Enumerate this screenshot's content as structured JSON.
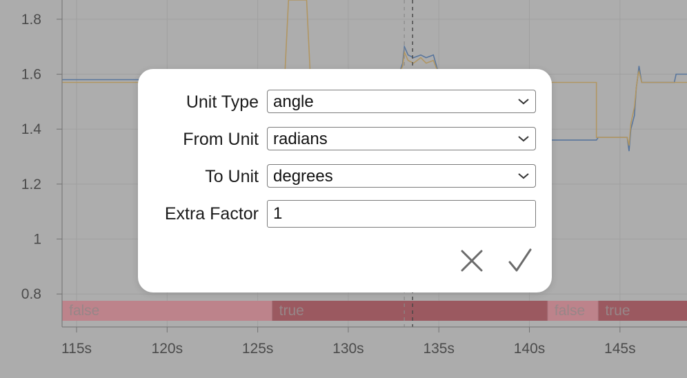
{
  "chart_data": {
    "type": "line",
    "xlabel": "",
    "ylabel": "",
    "xlim": [
      114.2,
      148.7
    ],
    "ylim": [
      0.68,
      1.87
    ],
    "y_ticks": [
      {
        "value": 0.8,
        "label": "0.8"
      },
      {
        "value": 1.0,
        "label": "1"
      },
      {
        "value": 1.2,
        "label": "1.2"
      },
      {
        "value": 1.4,
        "label": "1.4"
      },
      {
        "value": 1.6,
        "label": "1.6"
      },
      {
        "value": 1.8,
        "label": "1.8"
      }
    ],
    "x_ticks": [
      {
        "value": 115,
        "label": "115s"
      },
      {
        "value": 120,
        "label": "120s"
      },
      {
        "value": 125,
        "label": "125s"
      },
      {
        "value": 130,
        "label": "130s"
      },
      {
        "value": 135,
        "label": "135s"
      },
      {
        "value": 140,
        "label": "140s"
      },
      {
        "value": 145,
        "label": "145s"
      }
    ],
    "grid": true,
    "cursor_x": 133.55,
    "series": [
      {
        "color": "#6c8fbf",
        "points": [
          [
            114.2,
            1.58
          ],
          [
            124.6,
            1.58
          ],
          [
            124.6,
            1.6
          ],
          [
            126.6,
            1.6
          ],
          [
            126.7,
            1.6
          ],
          [
            132.8,
            1.6
          ],
          [
            133.0,
            1.64
          ],
          [
            133.1,
            1.7
          ],
          [
            133.3,
            1.67
          ],
          [
            133.6,
            1.66
          ],
          [
            134.0,
            1.67
          ],
          [
            134.3,
            1.66
          ],
          [
            134.7,
            1.67
          ],
          [
            135.0,
            1.6
          ],
          [
            136.3,
            1.6
          ],
          [
            136.4,
            1.5
          ],
          [
            136.8,
            1.4
          ],
          [
            137.5,
            1.36
          ],
          [
            139.0,
            1.36
          ],
          [
            139.5,
            1.36
          ],
          [
            143.7,
            1.36
          ],
          [
            143.8,
            1.37
          ],
          [
            145.4,
            1.37
          ],
          [
            145.5,
            1.32
          ],
          [
            145.6,
            1.4
          ],
          [
            145.8,
            1.45
          ],
          [
            145.9,
            1.55
          ],
          [
            146.0,
            1.6
          ],
          [
            146.05,
            1.63
          ],
          [
            146.2,
            1.57
          ],
          [
            148.0,
            1.57
          ],
          [
            148.1,
            1.6
          ],
          [
            148.7,
            1.6
          ]
        ]
      },
      {
        "color": "#d8b778",
        "points": [
          [
            114.2,
            1.57
          ],
          [
            124.6,
            1.57
          ],
          [
            124.6,
            1.6
          ],
          [
            126.5,
            1.6
          ],
          [
            126.7,
            1.87
          ],
          [
            127.7,
            1.87
          ],
          [
            127.9,
            1.6
          ],
          [
            132.8,
            1.6
          ],
          [
            133.0,
            1.63
          ],
          [
            133.1,
            1.68
          ],
          [
            133.3,
            1.65
          ],
          [
            133.6,
            1.64
          ],
          [
            134.0,
            1.66
          ],
          [
            134.3,
            1.64
          ],
          [
            134.7,
            1.65
          ],
          [
            135.0,
            1.6
          ],
          [
            137.0,
            1.6
          ],
          [
            137.1,
            1.57
          ],
          [
            143.7,
            1.57
          ],
          [
            143.7,
            1.37
          ],
          [
            145.4,
            1.37
          ],
          [
            145.5,
            1.34
          ],
          [
            145.6,
            1.42
          ],
          [
            145.8,
            1.48
          ],
          [
            145.9,
            1.55
          ],
          [
            146.0,
            1.6
          ],
          [
            146.05,
            1.61
          ],
          [
            146.2,
            1.57
          ],
          [
            148.7,
            1.57
          ]
        ]
      }
    ],
    "boolean_track": [
      {
        "start": 114.2,
        "end": 125.8,
        "label": "false",
        "value": false
      },
      {
        "start": 125.8,
        "end": 141.0,
        "label": "true",
        "value": true
      },
      {
        "start": 141.0,
        "end": 143.8,
        "label": "false",
        "value": false
      },
      {
        "start": 143.8,
        "end": 148.7,
        "label": "true",
        "value": true
      }
    ],
    "colors": {
      "false_segment": "#e7a0aa",
      "true_segment": "#be6d76",
      "divider": "#c88992"
    }
  },
  "dialog": {
    "fields": [
      {
        "label": "Unit Type",
        "value": "angle",
        "kind": "select"
      },
      {
        "label": "From Unit",
        "value": "radians",
        "kind": "select"
      },
      {
        "label": "To Unit",
        "value": "degrees",
        "kind": "select"
      }
    ],
    "extra_factor": {
      "label": "Extra Factor",
      "value": "1"
    },
    "cancel_icon": "close-icon",
    "confirm_icon": "checkmark-icon",
    "icon_color": "#6b6b6b"
  },
  "overlay_color": "rgba(0,0,0,0.18)"
}
